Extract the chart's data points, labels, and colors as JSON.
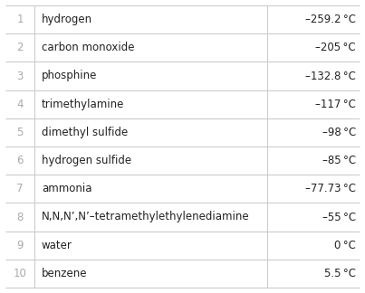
{
  "rows": [
    {
      "rank": "1",
      "name": "hydrogen",
      "temp": "–259.2 °C"
    },
    {
      "rank": "2",
      "name": "carbon monoxide",
      "temp": "–205 °C"
    },
    {
      "rank": "3",
      "name": "phosphine",
      "temp": "–132.8 °C"
    },
    {
      "rank": "4",
      "name": "trimethylamine",
      "temp": "–117 °C"
    },
    {
      "rank": "5",
      "name": "dimethyl sulfide",
      "temp": "–98 °C"
    },
    {
      "rank": "6",
      "name": "hydrogen sulfide",
      "temp": "–85 °C"
    },
    {
      "rank": "7",
      "name": "ammonia",
      "temp": "–77.73 °C"
    },
    {
      "rank": "8",
      "name": "N,N,N’,N’–tetramethylethylenediamine",
      "temp": "–55 °C"
    },
    {
      "rank": "9",
      "name": "water",
      "temp": "0 °C"
    },
    {
      "rank": "10",
      "name": "benzene",
      "temp": "5.5 °C"
    }
  ],
  "font_size": 8.5,
  "rank_color": "#aaaaaa",
  "name_color": "#222222",
  "temp_color": "#222222",
  "line_color": "#cccccc",
  "bg_color": "#ffffff"
}
